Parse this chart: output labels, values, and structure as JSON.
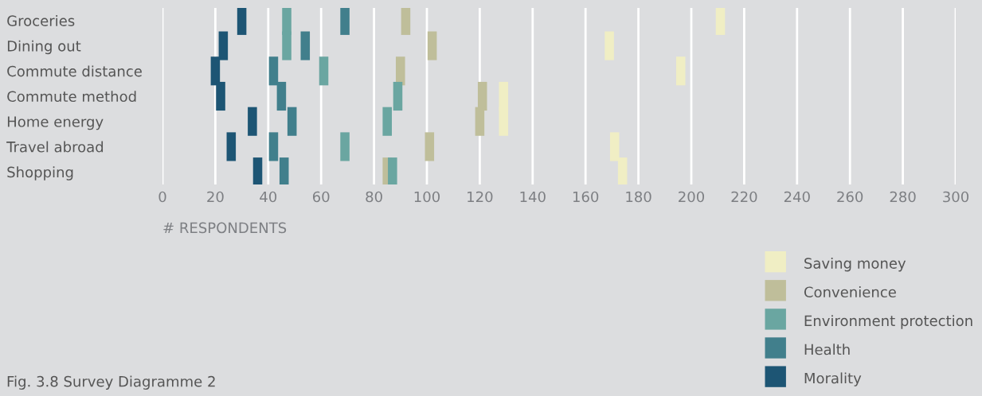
{
  "chart_data": {
    "type": "scatter",
    "orientation": "horizontal",
    "marker": "square",
    "categories": [
      "Groceries",
      "Dining out",
      "Commute distance",
      "Commute method",
      "Home energy",
      "Travel abroad",
      "Shopping"
    ],
    "series": [
      {
        "name": "Saving money",
        "color": "#f0eec4",
        "values": [
          211,
          169,
          196,
          129,
          129,
          171,
          174
        ]
      },
      {
        "name": "Convenience",
        "color": "#bfbe9a",
        "values": [
          92,
          102,
          90,
          121,
          120,
          101,
          85
        ]
      },
      {
        "name": "Environment protection",
        "color": "#6aa6a1",
        "values": [
          47,
          47,
          61,
          89,
          85,
          69,
          87
        ]
      },
      {
        "name": "Health",
        "color": "#417f8c",
        "values": [
          69,
          54,
          42,
          45,
          49,
          42,
          46
        ]
      },
      {
        "name": "Morality",
        "color": "#1d5574",
        "values": [
          30,
          23,
          20,
          22,
          34,
          26,
          36
        ]
      }
    ],
    "xlim": [
      0,
      300
    ],
    "xticks": [
      0,
      20,
      40,
      60,
      80,
      100,
      120,
      140,
      160,
      180,
      200,
      220,
      240,
      260,
      280,
      300
    ],
    "xlabel": "# RESPONDENTS",
    "grid": "x",
    "legend": "bottom right",
    "annotations": [
      "Fig. 3.8 Survey Diagramme 2"
    ]
  }
}
